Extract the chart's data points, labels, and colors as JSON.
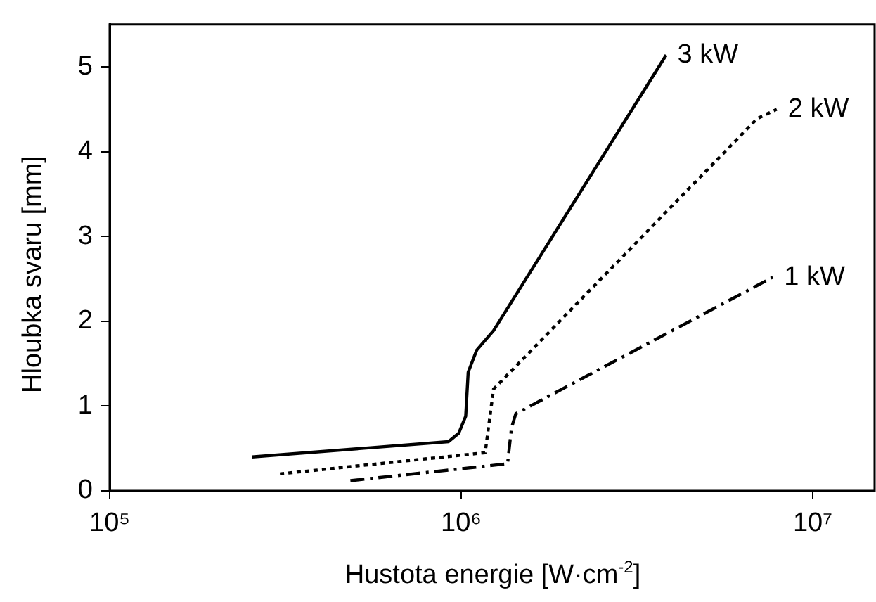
{
  "chart_data": {
    "type": "line",
    "xlabel": "Hustota energie [W·cm$^{-2}$]",
    "ylabel": "Hloubka svaru [mm]",
    "log": "x",
    "xlim": [
      100000,
      15000000
    ],
    "xticks": [
      {
        "value": 100000,
        "label": "10⁵"
      },
      {
        "value": 1000000,
        "label": "10⁶"
      },
      {
        "value": 10000000,
        "label": "10⁷"
      }
    ],
    "ylim": [
      0,
      5.5
    ],
    "yticks": [
      0,
      1,
      2,
      3,
      4,
      5
    ],
    "grid": false,
    "legend": false,
    "marker": "none",
    "series": [
      {
        "name": "3 kW",
        "color": "#000000",
        "line_style": "solid",
        "x": [
          254000,
          920000,
          984000,
          1030000,
          1047000,
          1107000,
          1236000,
          3830000
        ],
        "values": [
          0.4,
          0.58,
          0.68,
          0.88,
          1.4,
          1.66,
          1.89,
          5.14
        ]
      },
      {
        "name": "2 kW",
        "color": "#000000",
        "line_style": "dotted",
        "x": [
          305000,
          1170000,
          1236000,
          6950000,
          7900000
        ],
        "values": [
          0.2,
          0.45,
          1.2,
          4.39,
          4.5
        ]
      },
      {
        "name": "1 kW",
        "color": "#000000",
        "line_style": "dashed",
        "x": [
          484000,
          1355000,
          1390000,
          1430000,
          7700000
        ],
        "values": [
          0.12,
          0.32,
          0.74,
          0.91,
          2.52
        ]
      }
    ]
  }
}
